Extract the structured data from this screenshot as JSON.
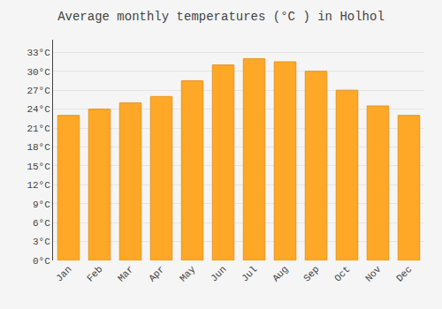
{
  "chart_data": {
    "type": "bar",
    "title": "Average monthly temperatures (°C ) in Holhol",
    "categories": [
      "Jan",
      "Feb",
      "Mar",
      "Apr",
      "May",
      "Jun",
      "Jul",
      "Aug",
      "Sep",
      "Oct",
      "Nov",
      "Dec"
    ],
    "values": [
      23,
      24,
      25,
      26,
      28.5,
      31,
      32,
      31.5,
      30,
      27,
      24.5,
      23
    ],
    "color": "#FFA726",
    "ylim": [
      0,
      35
    ],
    "yticks": [
      {
        "value": 0,
        "label": "0°C"
      },
      {
        "value": 3,
        "label": "3°C"
      },
      {
        "value": 6,
        "label": "6°C"
      },
      {
        "value": 9,
        "label": "9°C"
      },
      {
        "value": 12,
        "label": "12°C"
      },
      {
        "value": 15,
        "label": "15°C"
      },
      {
        "value": 18,
        "label": "18°C"
      },
      {
        "value": 21,
        "label": "21°C"
      },
      {
        "value": 24,
        "label": "24°C"
      },
      {
        "value": 27,
        "label": "27°C"
      },
      {
        "value": 30,
        "label": "30°C"
      },
      {
        "value": 33,
        "label": "33°C"
      }
    ],
    "grid": true
  }
}
